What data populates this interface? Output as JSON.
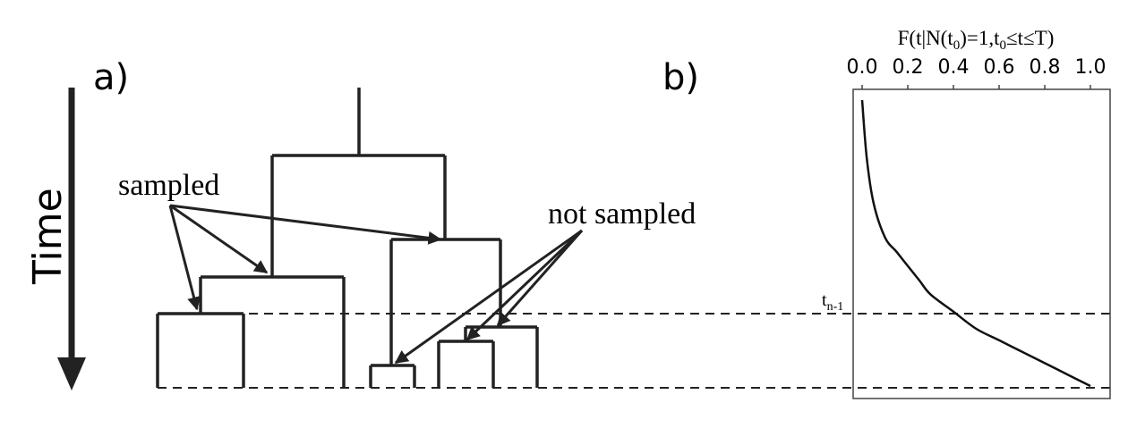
{
  "panel_a": {
    "label": "a)",
    "time_label": "Time",
    "sampled_label": "sampled",
    "not_sampled_label": "not sampled"
  },
  "panel_b": {
    "label": "b)",
    "top_axis_title": "F(t|N(t0)=1,t0≤t≤T)",
    "tn1_label": "tn-1"
  },
  "chart_data": {
    "type": "line",
    "title": "",
    "xlabel": "F(t|N(t0)=1,t0≤t≤T)",
    "ylabel": "",
    "xlim": [
      0.0,
      1.0
    ],
    "x_ticks": [
      0.0,
      0.2,
      0.4,
      0.6,
      0.8,
      1.0
    ],
    "x_tick_labels": [
      "0.0",
      "0.2",
      "0.4",
      "0.6",
      "0.8",
      "1.0"
    ],
    "axis_position": "top",
    "grid": false,
    "series": [
      {
        "x": [
          0.0,
          0.02,
          0.05,
          0.1,
          0.15,
          0.2,
          0.25,
          0.3,
          0.4,
          0.5,
          0.6,
          0.7,
          0.8,
          0.9,
          1.0
        ],
        "y": [
          1.0,
          0.8,
          0.64,
          0.52,
          0.47,
          0.42,
          0.37,
          0.32,
          0.26,
          0.2,
          0.16,
          0.12,
          0.08,
          0.04,
          0.0
        ]
      }
    ]
  }
}
